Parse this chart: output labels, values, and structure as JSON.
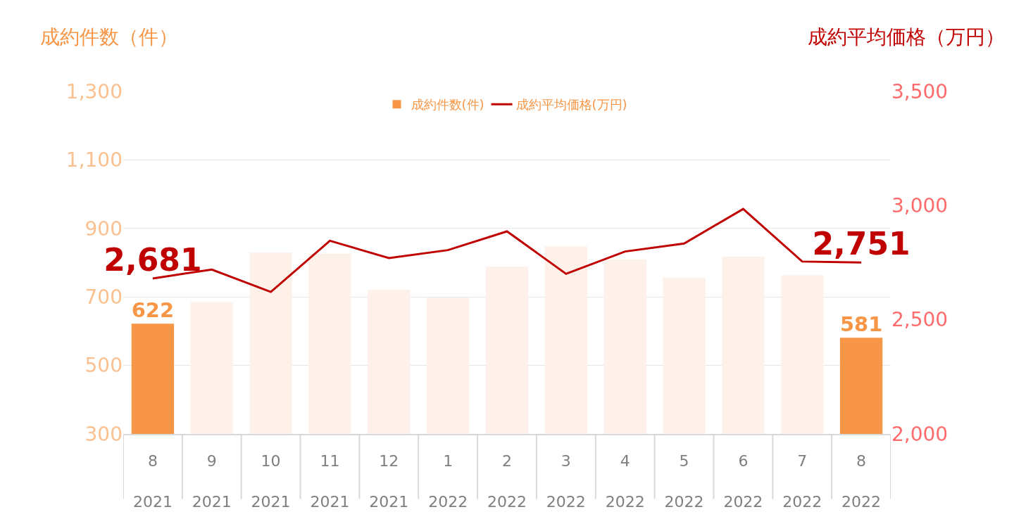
{
  "chart_data": {
    "type": "bar",
    "ylabel": "成約件数（件）",
    "y2label": "成約平均価格（万円）",
    "categories": [
      "8\n2021",
      "9\n2021",
      "10\n2021",
      "11\n2021",
      "12\n2021",
      "1\n2022",
      "2\n2022",
      "3\n2022",
      "4\n2022",
      "5\n2022",
      "6\n2022",
      "7\n2022",
      "8\n2022"
    ],
    "series": [
      {
        "name": "成約件数(件)",
        "color": "#fdf1e9",
        "colors": [
          "#f79646",
          "#fdf1e9",
          "#fdf1e9",
          "#fdf1e9",
          "#fdf1e9",
          "#fdf1e9",
          "#fdf1e9",
          "#fdf1e9",
          "#fdf1e9",
          "#fdf1e9",
          "#fdf1e9",
          "#fdf1e9",
          "#f79646"
        ],
        "values": [
          622,
          685,
          830,
          826,
          721,
          698,
          788,
          847,
          809,
          757,
          818,
          763,
          581
        ],
        "value_labels": [
          "622",
          null,
          null,
          null,
          null,
          null,
          null,
          null,
          null,
          null,
          null,
          null,
          "581"
        ]
      },
      {
        "name": "成約平均価格(万円)",
        "type": "line",
        "axis": "y2",
        "color": "#c00000",
        "values": [
          2681,
          2720,
          2622,
          2846,
          2770,
          2805,
          2887,
          2701,
          2799,
          2834,
          2985,
          2755,
          2751
        ],
        "value_labels": [
          "2,681",
          null,
          null,
          null,
          null,
          null,
          null,
          null,
          null,
          null,
          null,
          null,
          "2,751"
        ]
      }
    ],
    "ylim": [
      300,
      1300
    ],
    "yticks": [
      {
        "value": 300,
        "label": "300"
      },
      {
        "value": 500,
        "label": "500"
      },
      {
        "value": 700,
        "label": "700"
      },
      {
        "value": 900,
        "label": "900"
      },
      {
        "value": 1100,
        "label": "1,100"
      },
      {
        "value": 1300,
        "label": "1,300"
      }
    ],
    "y2lim": [
      2000,
      3500
    ],
    "y2ticks": [
      {
        "value": 2000,
        "label": "2,000"
      },
      {
        "value": 2500,
        "label": "2,500"
      },
      {
        "value": 3000,
        "label": "3,000"
      },
      {
        "value": 3500,
        "label": "3,500"
      }
    ],
    "grid": "y",
    "legend": "top",
    "marker": "none",
    "line_style": "solid"
  }
}
